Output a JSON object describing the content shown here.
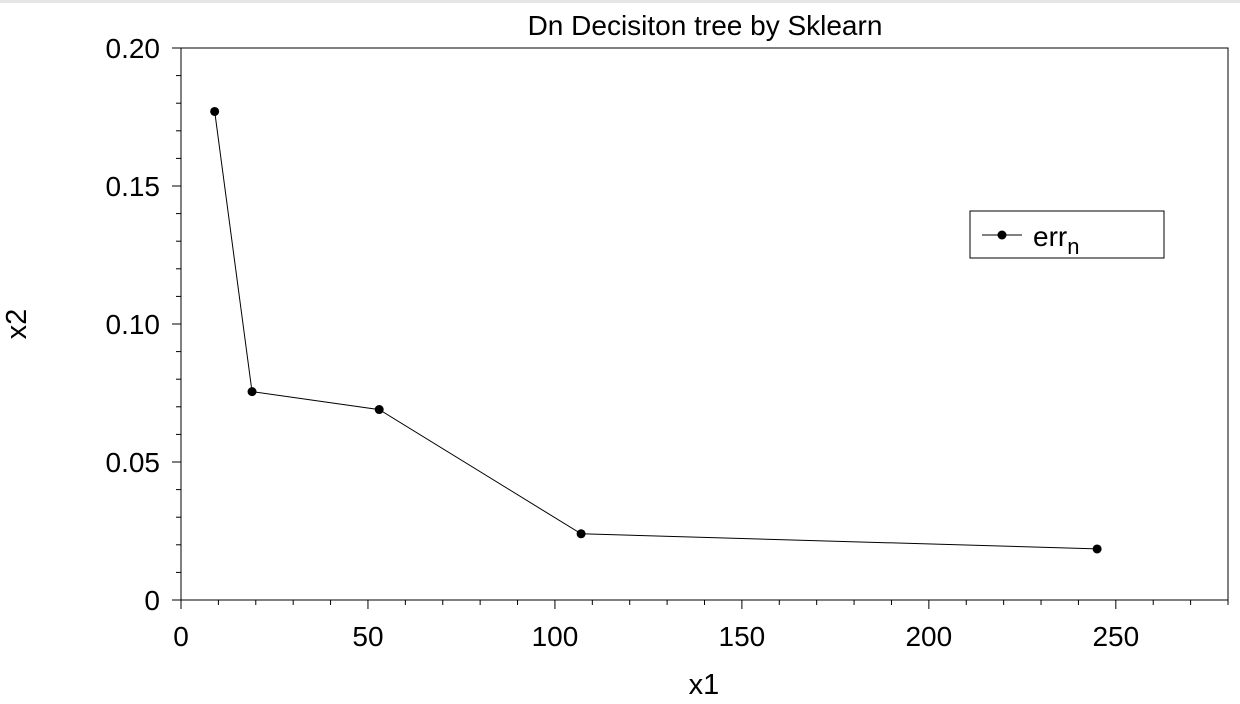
{
  "chart_data": {
    "type": "line",
    "title": "Dn Decisiton tree by Sklearn",
    "xlabel": "x1",
    "ylabel": "x2",
    "xlim": [
      0,
      280
    ],
    "ylim": [
      0,
      0.2
    ],
    "x_ticks": [
      0,
      50,
      100,
      150,
      200,
      250
    ],
    "x_tick_labels": [
      "0",
      "50",
      "100",
      "150",
      "200",
      "250"
    ],
    "x_minor_step": 10,
    "y_ticks": [
      0,
      0.05,
      0.1,
      0.15,
      0.2
    ],
    "y_tick_labels": [
      "0",
      "0.05",
      "0.10",
      "0.15",
      "0.20"
    ],
    "y_minor_step": 0.01,
    "grid": false,
    "legend_position": "upper-right",
    "series": [
      {
        "name_base": "err",
        "name_subscript": "n",
        "color": "#000000",
        "marker": "circle",
        "x": [
          9,
          19,
          53,
          107,
          245
        ],
        "y": [
          0.177,
          0.0755,
          0.069,
          0.024,
          0.0185
        ]
      }
    ]
  }
}
